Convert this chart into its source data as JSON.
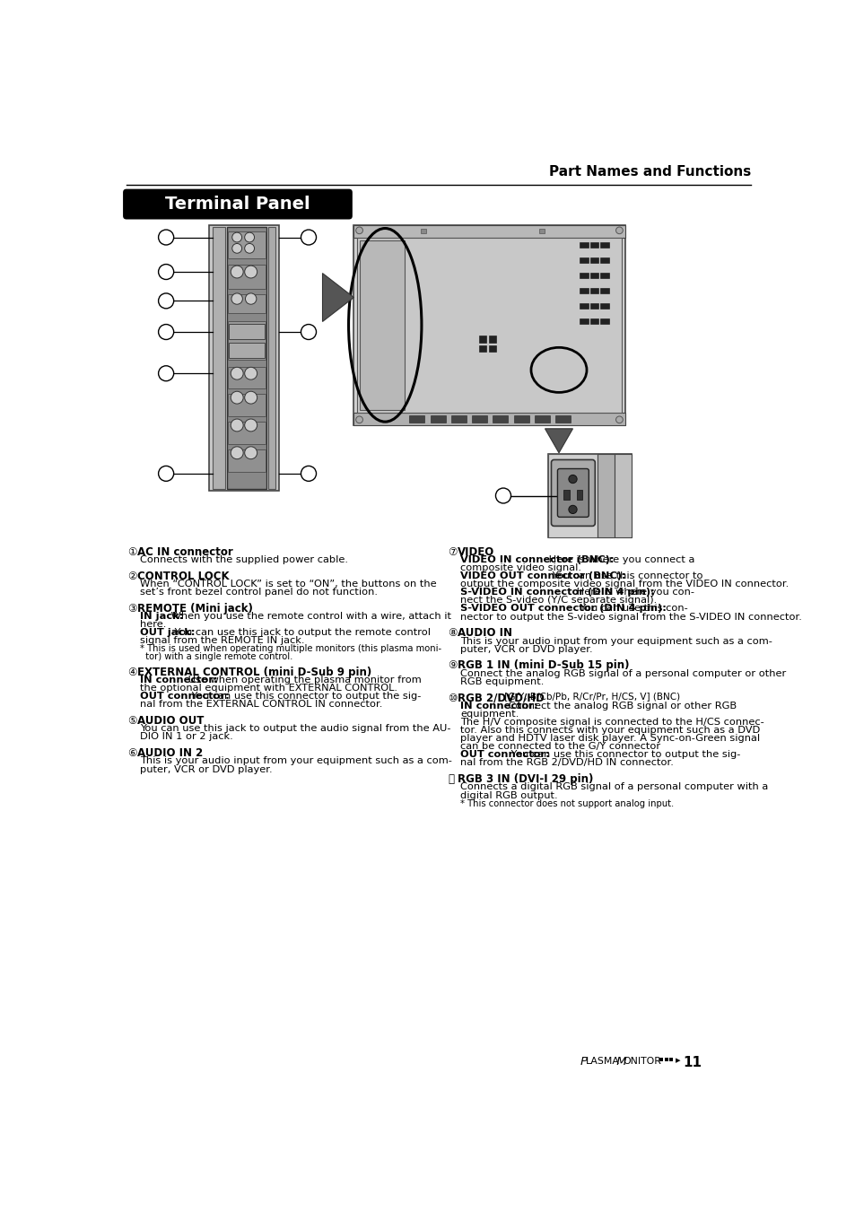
{
  "bg_color": "#ffffff",
  "page_title": "Part Names and Functions",
  "section_title": "Terminal Panel",
  "left_items": [
    {
      "num": "①",
      "title": "AC IN connector",
      "lines": [
        {
          "text": "Connects with the supplied power cable.",
          "bold": false,
          "small": false,
          "indent": true
        }
      ]
    },
    {
      "num": "②",
      "title": "CONTROL LOCK",
      "lines": [
        {
          "text": "When “CONTROL LOCK” is set to “ON”, the buttons on the",
          "bold": false,
          "small": false,
          "indent": true
        },
        {
          "text": "set’s front bezel control panel do not function.",
          "bold": false,
          "small": false,
          "indent": true
        }
      ]
    },
    {
      "num": "③",
      "title": "REMOTE (Mini jack)",
      "lines": [
        {
          "bold_prefix": "IN jack:",
          "rest": " When you use the remote control with a wire, attach it",
          "small": false,
          "indent": true
        },
        {
          "text": "here.",
          "bold": false,
          "small": false,
          "indent": true
        },
        {
          "bold_prefix": "OUT jack:",
          "rest": " You can use this jack to output the remote control",
          "small": false,
          "indent": true
        },
        {
          "text": "signal from the REMOTE IN jack.",
          "bold": false,
          "small": false,
          "indent": true
        },
        {
          "text": "* This is used when operating multiple monitors (this plasma moni-",
          "bold": false,
          "small": true,
          "indent": true
        },
        {
          "text": "  tor) with a single remote control.",
          "bold": false,
          "small": true,
          "indent": true
        }
      ]
    },
    {
      "num": "④",
      "title": "EXTERNAL CONTROL (mini D-Sub 9 pin)",
      "lines": [
        {
          "bold_prefix": "IN connector:",
          "rest": " Use when operating the plasma monitor from",
          "small": false,
          "indent": true
        },
        {
          "text": "the optional equipment with EXTERNAL CONTROL.",
          "bold": false,
          "small": false,
          "indent": true
        },
        {
          "bold_prefix": "OUT connector:",
          "rest": " You can use this connector to output the sig-",
          "small": false,
          "indent": true
        },
        {
          "text": "nal from the EXTERNAL CONTROL IN connector.",
          "bold": false,
          "small": false,
          "indent": true
        }
      ]
    },
    {
      "num": "⑤",
      "title": "AUDIO OUT",
      "lines": [
        {
          "text": "You can use this jack to output the audio signal from the AU-",
          "bold": false,
          "small": false,
          "indent": true
        },
        {
          "text": "DIO IN 1 or 2 jack.",
          "bold": false,
          "small": false,
          "indent": true
        }
      ]
    },
    {
      "num": "⑥",
      "title": "AUDIO IN 2",
      "lines": [
        {
          "text": "This is your audio input from your equipment such as a com-",
          "bold": false,
          "small": false,
          "indent": true
        },
        {
          "text": "puter, VCR or DVD player.",
          "bold": false,
          "small": false,
          "indent": true
        }
      ]
    }
  ],
  "right_items": [
    {
      "num": "⑦",
      "title": "VIDEO",
      "lines": [
        {
          "bold_prefix": "VIDEO IN connector (BNC):",
          "rest": " Here is where you connect a",
          "small": false,
          "indent": true
        },
        {
          "text": "composite video signal.",
          "bold": false,
          "small": false,
          "indent": true
        },
        {
          "bold_prefix": "VIDEO OUT connector (BNC):",
          "rest": " You can use this connector to",
          "small": false,
          "indent": true
        },
        {
          "text": "output the composite video signal from the VIDEO IN connector.",
          "bold": false,
          "small": false,
          "indent": true
        },
        {
          "bold_prefix": "S-VIDEO IN connector (DIN 4 pin):",
          "rest": " Here is where you con-",
          "small": false,
          "indent": true
        },
        {
          "text": "nect the S-video (Y/C separate signal).",
          "bold": false,
          "small": false,
          "indent": true
        },
        {
          "bold_prefix": "S-VIDEO OUT connector (DIN 4 pin):",
          "rest": " You can use this con-",
          "small": false,
          "indent": true
        },
        {
          "text": "nector to output the S-video signal from the S-VIDEO IN connector.",
          "bold": false,
          "small": false,
          "indent": true
        }
      ]
    },
    {
      "num": "⑧",
      "title": "AUDIO IN",
      "lines": [
        {
          "text": "This is your audio input from your equipment such as a com-",
          "bold": false,
          "small": false,
          "indent": true
        },
        {
          "text": "puter, VCR or DVD player.",
          "bold": false,
          "small": false,
          "indent": true
        }
      ]
    },
    {
      "num": "⑨",
      "title": "RGB 1 IN (mini D-Sub 15 pin)",
      "lines": [
        {
          "text": "Connect the analog RGB signal of a personal computer or other",
          "bold": false,
          "small": false,
          "indent": true
        },
        {
          "text": "RGB equipment.",
          "bold": false,
          "small": false,
          "indent": true
        }
      ]
    },
    {
      "num": "⑩",
      "title": "RGB 2/DVD/HD [G/Y, B/Cb/Pb, R/Cr/Pr, H/CS, V] (BNC)",
      "title_bold_part": "RGB 2/DVD/HD",
      "title_small_part": " [G/Y, B/Cb/Pb, R/Cr/Pr, H/CS, V] (BNC)",
      "lines": [
        {
          "bold_prefix": "IN connector:",
          "rest": " Connect the analog RGB signal or other RGB",
          "small": false,
          "indent": true
        },
        {
          "text": "equipment.",
          "bold": false,
          "small": false,
          "indent": true
        },
        {
          "text": "The H/V composite signal is connected to the H/CS connec-",
          "bold": false,
          "small": false,
          "indent": true
        },
        {
          "text": "tor. Also this connects with your equipment such as a DVD",
          "bold": false,
          "small": false,
          "indent": true
        },
        {
          "text": "player and HDTV laser disk player. A Sync-on-Green signal",
          "bold": false,
          "small": false,
          "indent": true
        },
        {
          "text": "can be connected to the G/Y connector",
          "bold": false,
          "small": false,
          "indent": true
        },
        {
          "bold_prefix": "OUT connector:",
          "rest": " You can use this connector to output the sig-",
          "small": false,
          "indent": true
        },
        {
          "text": "nal from the RGB 2/DVD/HD IN connector.",
          "bold": false,
          "small": false,
          "indent": true
        }
      ]
    },
    {
      "num": "⑪",
      "title": "RGB 3 IN (DVI-I 29 pin)",
      "lines": [
        {
          "text": "Connects a digital RGB signal of a personal computer with a",
          "bold": false,
          "small": false,
          "indent": true
        },
        {
          "text": "digital RGB output.",
          "bold": false,
          "small": false,
          "indent": true
        },
        {
          "text": "* This connector does not support analog input.",
          "bold": false,
          "small": true,
          "indent": true
        }
      ]
    }
  ]
}
